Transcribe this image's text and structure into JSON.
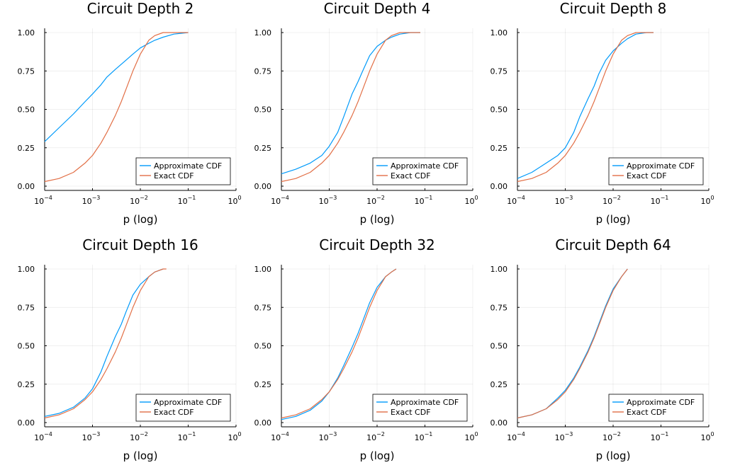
{
  "chart_data": [
    {
      "type": "line",
      "title": "Circuit Depth 2",
      "xlabel": "p (log)",
      "xscale": "log10",
      "xlim": [
        0.0001,
        1
      ],
      "ylim": [
        0,
        1
      ],
      "xticks": [
        {
          "base": "10",
          "exp": "−4"
        },
        {
          "base": "10",
          "exp": "−3"
        },
        {
          "base": "10",
          "exp": "−2"
        },
        {
          "base": "10",
          "exp": "−1"
        },
        {
          "base": "10",
          "exp": "0"
        }
      ],
      "yticks": [
        "0.00",
        "0.25",
        "0.50",
        "0.75",
        "1.00"
      ],
      "grid": true,
      "legend_position": "bottom-right",
      "series": [
        {
          "name": "Approximate CDF",
          "color": "#009AFA",
          "x": [
            0.0001,
            0.0002,
            0.0004,
            0.0007,
            0.001,
            0.0015,
            0.002,
            0.003,
            0.005,
            0.007,
            0.01,
            0.015,
            0.02,
            0.03,
            0.05,
            0.1
          ],
          "y": [
            0.29,
            0.38,
            0.47,
            0.55,
            0.6,
            0.66,
            0.71,
            0.76,
            0.82,
            0.86,
            0.9,
            0.93,
            0.95,
            0.97,
            0.99,
            1.0
          ]
        },
        {
          "name": "Exact CDF",
          "color": "#E26F46",
          "x": [
            0.0001,
            0.0002,
            0.0004,
            0.0007,
            0.001,
            0.0015,
            0.002,
            0.003,
            0.004,
            0.005,
            0.007,
            0.01,
            0.015,
            0.02,
            0.03,
            0.05,
            0.1
          ],
          "y": [
            0.03,
            0.05,
            0.09,
            0.15,
            0.2,
            0.28,
            0.35,
            0.46,
            0.55,
            0.63,
            0.75,
            0.86,
            0.95,
            0.98,
            1.0,
            1.0,
            1.0
          ]
        }
      ]
    },
    {
      "type": "line",
      "title": "Circuit Depth 4",
      "xlabel": "p (log)",
      "xscale": "log10",
      "xlim": [
        0.0001,
        1
      ],
      "ylim": [
        0,
        1
      ],
      "xticks": [
        {
          "base": "10",
          "exp": "−4"
        },
        {
          "base": "10",
          "exp": "−3"
        },
        {
          "base": "10",
          "exp": "−2"
        },
        {
          "base": "10",
          "exp": "−1"
        },
        {
          "base": "10",
          "exp": "0"
        }
      ],
      "yticks": [
        "0.00",
        "0.25",
        "0.50",
        "0.75",
        "1.00"
      ],
      "grid": true,
      "legend_position": "bottom-right",
      "series": [
        {
          "name": "Approximate CDF",
          "color": "#009AFA",
          "x": [
            0.0001,
            0.0002,
            0.0004,
            0.0007,
            0.001,
            0.0015,
            0.002,
            0.003,
            0.004,
            0.005,
            0.007,
            0.01,
            0.015,
            0.02,
            0.03,
            0.05,
            0.08
          ],
          "y": [
            0.08,
            0.11,
            0.15,
            0.2,
            0.26,
            0.35,
            0.45,
            0.6,
            0.68,
            0.75,
            0.85,
            0.91,
            0.95,
            0.97,
            0.99,
            1.0,
            1.0
          ]
        },
        {
          "name": "Exact CDF",
          "color": "#E26F46",
          "x": [
            0.0001,
            0.0002,
            0.0004,
            0.0007,
            0.001,
            0.0015,
            0.002,
            0.003,
            0.004,
            0.005,
            0.007,
            0.01,
            0.015,
            0.02,
            0.03,
            0.05,
            0.08
          ],
          "y": [
            0.03,
            0.05,
            0.09,
            0.15,
            0.2,
            0.28,
            0.35,
            0.46,
            0.55,
            0.63,
            0.75,
            0.86,
            0.95,
            0.98,
            1.0,
            1.0,
            1.0
          ]
        }
      ]
    },
    {
      "type": "line",
      "title": "Circuit Depth 8",
      "xlabel": "p (log)",
      "xscale": "log10",
      "xlim": [
        0.0001,
        1
      ],
      "ylim": [
        0,
        1
      ],
      "xticks": [
        {
          "base": "10",
          "exp": "−4"
        },
        {
          "base": "10",
          "exp": "−3"
        },
        {
          "base": "10",
          "exp": "−2"
        },
        {
          "base": "10",
          "exp": "−1"
        },
        {
          "base": "10",
          "exp": "0"
        }
      ],
      "yticks": [
        "0.00",
        "0.25",
        "0.50",
        "0.75",
        "1.00"
      ],
      "grid": true,
      "legend_position": "bottom-right",
      "series": [
        {
          "name": "Approximate CDF",
          "color": "#009AFA",
          "x": [
            0.0001,
            0.0002,
            0.0004,
            0.0007,
            0.001,
            0.0015,
            0.002,
            0.003,
            0.004,
            0.005,
            0.007,
            0.01,
            0.015,
            0.02,
            0.03,
            0.05,
            0.07
          ],
          "y": [
            0.05,
            0.09,
            0.15,
            0.2,
            0.25,
            0.35,
            0.45,
            0.57,
            0.65,
            0.73,
            0.82,
            0.88,
            0.93,
            0.96,
            0.99,
            1.0,
            1.0
          ]
        },
        {
          "name": "Exact CDF",
          "color": "#E26F46",
          "x": [
            0.0001,
            0.0002,
            0.0004,
            0.0007,
            0.001,
            0.0015,
            0.002,
            0.003,
            0.004,
            0.005,
            0.007,
            0.01,
            0.015,
            0.02,
            0.03,
            0.05,
            0.07
          ],
          "y": [
            0.03,
            0.05,
            0.09,
            0.15,
            0.2,
            0.28,
            0.35,
            0.46,
            0.55,
            0.63,
            0.75,
            0.86,
            0.95,
            0.98,
            1.0,
            1.0,
            1.0
          ]
        }
      ]
    },
    {
      "type": "line",
      "title": "Circuit Depth 16",
      "xlabel": "p (log)",
      "xscale": "log10",
      "xlim": [
        0.0001,
        1
      ],
      "ylim": [
        0,
        1
      ],
      "xticks": [
        {
          "base": "10",
          "exp": "−4"
        },
        {
          "base": "10",
          "exp": "−3"
        },
        {
          "base": "10",
          "exp": "−2"
        },
        {
          "base": "10",
          "exp": "−1"
        },
        {
          "base": "10",
          "exp": "0"
        }
      ],
      "yticks": [
        "0.00",
        "0.25",
        "0.50",
        "0.75",
        "1.00"
      ],
      "grid": true,
      "legend_position": "bottom-right",
      "series": [
        {
          "name": "Approximate CDF",
          "color": "#009AFA",
          "x": [
            0.0001,
            0.0002,
            0.0004,
            0.0007,
            0.001,
            0.0015,
            0.002,
            0.003,
            0.004,
            0.005,
            0.007,
            0.01,
            0.015,
            0.02,
            0.03
          ],
          "y": [
            0.04,
            0.06,
            0.1,
            0.16,
            0.22,
            0.33,
            0.43,
            0.56,
            0.64,
            0.72,
            0.83,
            0.9,
            0.95,
            0.98,
            1.0
          ]
        },
        {
          "name": "Exact CDF",
          "color": "#E26F46",
          "x": [
            0.0001,
            0.0002,
            0.0004,
            0.0007,
            0.001,
            0.0015,
            0.002,
            0.003,
            0.004,
            0.005,
            0.007,
            0.01,
            0.015,
            0.02,
            0.03,
            0.035
          ],
          "y": [
            0.03,
            0.05,
            0.09,
            0.15,
            0.2,
            0.28,
            0.35,
            0.46,
            0.55,
            0.63,
            0.75,
            0.86,
            0.95,
            0.98,
            1.0,
            1.0
          ]
        }
      ]
    },
    {
      "type": "line",
      "title": "Circuit Depth 32",
      "xlabel": "p (log)",
      "xscale": "log10",
      "xlim": [
        0.0001,
        1
      ],
      "ylim": [
        0,
        1
      ],
      "xticks": [
        {
          "base": "10",
          "exp": "−4"
        },
        {
          "base": "10",
          "exp": "−3"
        },
        {
          "base": "10",
          "exp": "−2"
        },
        {
          "base": "10",
          "exp": "−1"
        },
        {
          "base": "10",
          "exp": "0"
        }
      ],
      "yticks": [
        "0.00",
        "0.25",
        "0.50",
        "0.75",
        "1.00"
      ],
      "grid": true,
      "legend_position": "bottom-right",
      "series": [
        {
          "name": "Approximate CDF",
          "color": "#009AFA",
          "x": [
            0.0001,
            0.0002,
            0.0004,
            0.0007,
            0.001,
            0.0015,
            0.002,
            0.003,
            0.004,
            0.005,
            0.007,
            0.01,
            0.015,
            0.02,
            0.025
          ],
          "y": [
            0.02,
            0.04,
            0.08,
            0.14,
            0.2,
            0.29,
            0.37,
            0.49,
            0.58,
            0.66,
            0.78,
            0.88,
            0.95,
            0.98,
            1.0
          ]
        },
        {
          "name": "Exact CDF",
          "color": "#E26F46",
          "x": [
            0.0001,
            0.0002,
            0.0004,
            0.0007,
            0.001,
            0.0015,
            0.002,
            0.003,
            0.004,
            0.005,
            0.007,
            0.01,
            0.015,
            0.02,
            0.025
          ],
          "y": [
            0.03,
            0.05,
            0.09,
            0.15,
            0.2,
            0.28,
            0.35,
            0.46,
            0.55,
            0.63,
            0.75,
            0.86,
            0.95,
            0.98,
            1.0
          ]
        }
      ]
    },
    {
      "type": "line",
      "title": "Circuit Depth 64",
      "xlabel": "p (log)",
      "xscale": "log10",
      "xlim": [
        0.0001,
        1
      ],
      "ylim": [
        0,
        1
      ],
      "xticks": [
        {
          "base": "10",
          "exp": "−4"
        },
        {
          "base": "10",
          "exp": "−3"
        },
        {
          "base": "10",
          "exp": "−2"
        },
        {
          "base": "10",
          "exp": "−1"
        },
        {
          "base": "10",
          "exp": "0"
        }
      ],
      "yticks": [
        "0.00",
        "0.25",
        "0.50",
        "0.75",
        "1.00"
      ],
      "grid": true,
      "legend_position": "bottom-right",
      "series": [
        {
          "name": "Approximate CDF",
          "color": "#009AFA",
          "x": [
            0.0001,
            0.0002,
            0.0004,
            0.0007,
            0.001,
            0.0015,
            0.002,
            0.003,
            0.004,
            0.005,
            0.007,
            0.01,
            0.015,
            0.02
          ],
          "y": [
            0.03,
            0.05,
            0.09,
            0.16,
            0.21,
            0.29,
            0.36,
            0.47,
            0.56,
            0.64,
            0.76,
            0.87,
            0.95,
            1.0
          ]
        },
        {
          "name": "Exact CDF",
          "color": "#E26F46",
          "x": [
            0.0001,
            0.0002,
            0.0004,
            0.0007,
            0.001,
            0.0015,
            0.002,
            0.003,
            0.004,
            0.005,
            0.007,
            0.01,
            0.015,
            0.02
          ],
          "y": [
            0.03,
            0.05,
            0.09,
            0.15,
            0.2,
            0.28,
            0.35,
            0.46,
            0.55,
            0.63,
            0.75,
            0.86,
            0.95,
            1.0
          ]
        }
      ]
    }
  ]
}
